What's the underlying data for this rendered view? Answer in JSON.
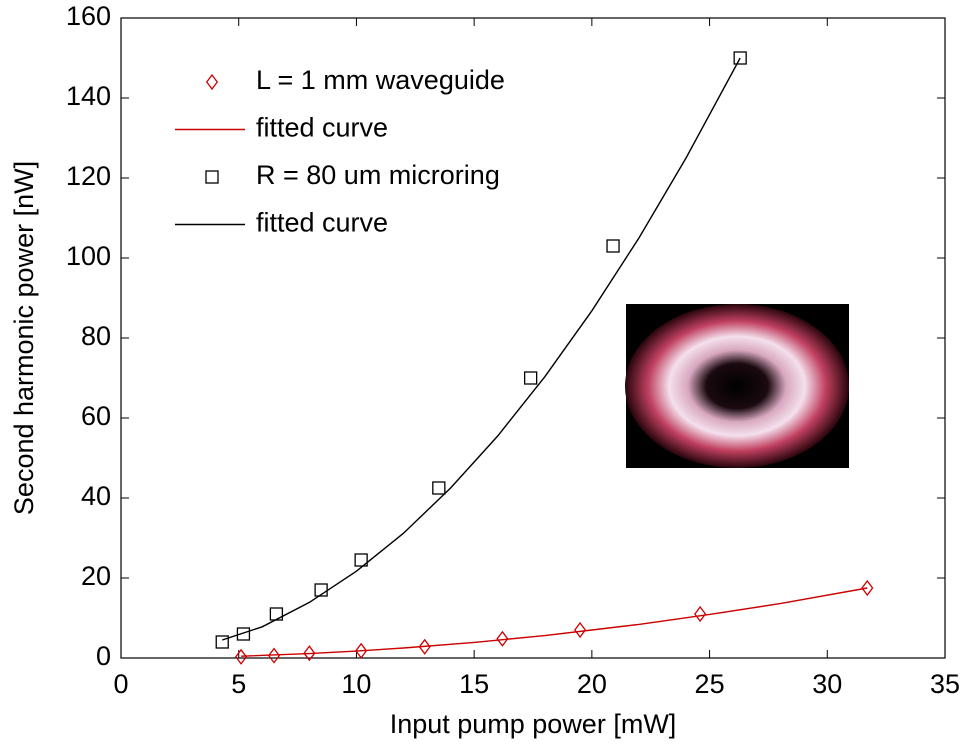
{
  "chart_data": {
    "type": "scatter",
    "xlabel": "Input pump power [mW]",
    "ylabel": "Second harmonic power [nW]",
    "xlim": [
      0,
      35
    ],
    "xticks": [
      0,
      5,
      10,
      15,
      20,
      25,
      30,
      35
    ],
    "ylim": [
      0,
      160
    ],
    "yticks": [
      0,
      20,
      40,
      60,
      80,
      100,
      120,
      140,
      160
    ],
    "legend": "upper left",
    "series": [
      {
        "name": "L = 1 mm waveguide",
        "color": "#cc0000",
        "style": "marker",
        "marker": "diamond",
        "x": [
          5.1,
          6.5,
          8.0,
          10.2,
          12.9,
          16.2,
          19.5,
          24.6,
          31.7
        ],
        "values": [
          0.3,
          0.6,
          1.2,
          1.8,
          2.8,
          4.8,
          7,
          11,
          17.5
        ]
      },
      {
        "name": "fitted curve",
        "color": "#cc0000",
        "style": "line",
        "x": [
          5.1,
          8,
          10,
          12,
          15,
          18,
          20,
          22,
          25,
          28,
          31.7
        ],
        "values": [
          0.45,
          1.1,
          1.74,
          2.5,
          3.9,
          5.6,
          7.0,
          8.4,
          10.9,
          13.6,
          17.5
        ]
      },
      {
        "name": "R = 80 um microring",
        "color": "#000000",
        "style": "marker",
        "marker": "square",
        "x": [
          4.3,
          5.2,
          6.6,
          8.5,
          10.2,
          13.5,
          17.4,
          20.9,
          26.3
        ],
        "values": [
          4,
          6,
          11,
          17,
          24.5,
          42.5,
          70,
          103,
          150
        ]
      },
      {
        "name": "fitted curve",
        "color": "#000000",
        "style": "line",
        "x": [
          4.3,
          6,
          8,
          10,
          12,
          14,
          16,
          18,
          20,
          22,
          24,
          26.3
        ],
        "values": [
          4.5,
          7.8,
          13.9,
          21.7,
          31.2,
          42.5,
          55.5,
          70.3,
          86.8,
          105,
          125,
          150
        ]
      }
    ]
  }
}
